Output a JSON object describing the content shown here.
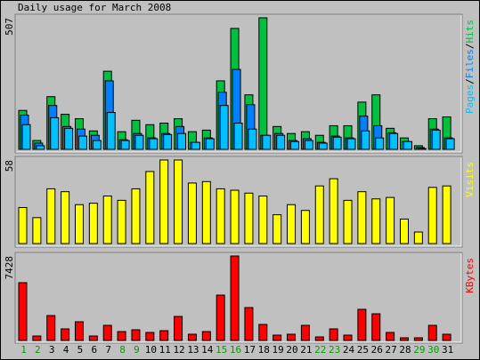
{
  "chart_data": [
    {
      "type": "bar",
      "title": "Daily usage for March 2008",
      "legend_separator": "/",
      "series": [
        {
          "name": "Hits",
          "color": "#00c040",
          "values": [
            150,
            34,
            203,
            135,
            118,
            71,
            301,
            68,
            112,
            95,
            101,
            118,
            68,
            74,
            264,
            466,
            210,
            507,
            88,
            61,
            68,
            54,
            91,
            91,
            182,
            210,
            81,
            44,
            14,
            118,
            125
          ]
        },
        {
          "name": "Files",
          "color": "#0080ff",
          "values": [
            132,
            24,
            169,
            88,
            78,
            54,
            264,
            37,
            61,
            44,
            61,
            88,
            27,
            44,
            220,
            308,
            172,
            54,
            61,
            34,
            41,
            27,
            51,
            44,
            128,
            91,
            64,
            30,
            7,
            78,
            44
          ]
        },
        {
          "name": "Pages",
          "color": "#00c0ff",
          "values": [
            95,
            14,
            122,
            81,
            51,
            34,
            142,
            34,
            54,
            41,
            57,
            61,
            27,
            41,
            169,
            101,
            78,
            54,
            54,
            30,
            34,
            24,
            47,
            41,
            71,
            44,
            61,
            30,
            3,
            74,
            41
          ]
        }
      ],
      "ylim": [
        0,
        507
      ],
      "yticks": [
        507
      ],
      "grid": false
    },
    {
      "type": "bar",
      "series": [
        {
          "name": "Visits",
          "color": "#ffff00",
          "values": [
            25,
            18,
            38,
            36,
            27,
            28,
            33,
            30,
            38,
            50,
            58,
            58,
            42,
            43,
            38,
            37,
            35,
            33,
            20,
            27,
            23,
            40,
            45,
            30,
            36,
            31,
            32,
            17,
            8,
            39,
            40
          ]
        }
      ],
      "ylim": [
        0,
        58
      ],
      "yticks": [
        58
      ],
      "grid": false
    },
    {
      "type": "bar",
      "series": [
        {
          "name": "KBytes",
          "color": "#ff0000",
          "values": [
            5083,
            391,
            2189,
            1017,
            1642,
            391,
            1329,
            782,
            938,
            704,
            860,
            2111,
            547,
            782,
            3988,
            7428,
            2893,
            1408,
            469,
            547,
            1329,
            313,
            1017,
            469,
            2737,
            2346,
            704,
            235,
            235,
            1329,
            547
          ]
        }
      ],
      "ylim": [
        0,
        7428
      ],
      "yticks": [
        7428
      ],
      "grid": false,
      "categories": [
        "1",
        "2",
        "3",
        "4",
        "5",
        "6",
        "7",
        "8",
        "9",
        "10",
        "11",
        "12",
        "13",
        "14",
        "15",
        "16",
        "17",
        "18",
        "19",
        "20",
        "21",
        "22",
        "23",
        "24",
        "25",
        "26",
        "27",
        "28",
        "29",
        "30",
        "31"
      ],
      "category_colors": [
        "#00a000",
        "#00a000",
        "#000000",
        "#000000",
        "#000000",
        "#000000",
        "#000000",
        "#00a000",
        "#00a000",
        "#000000",
        "#000000",
        "#000000",
        "#000000",
        "#000000",
        "#00a000",
        "#00a000",
        "#000000",
        "#000000",
        "#000000",
        "#000000",
        "#000000",
        "#00a000",
        "#00a000",
        "#000000",
        "#000000",
        "#000000",
        "#000000",
        "#000000",
        "#00a000",
        "#00a000",
        "#000000"
      ]
    }
  ]
}
